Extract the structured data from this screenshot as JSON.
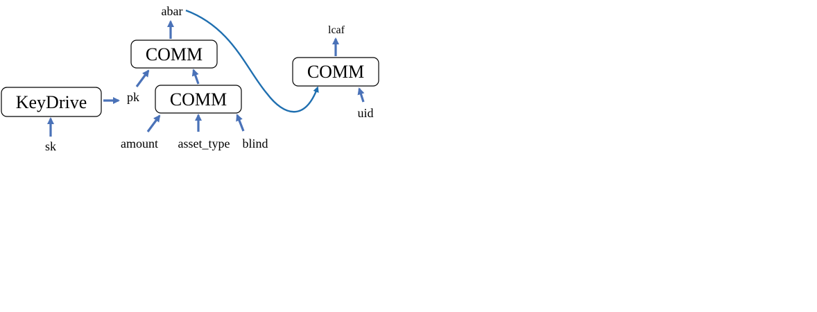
{
  "nodes": {
    "keydrive": "KeyDrive",
    "comm_top": "COMM",
    "comm_mid": "COMM",
    "comm_right": "COMM"
  },
  "labels": {
    "sk": "sk",
    "pk": "pk",
    "abar": "abar",
    "amount": "amount",
    "asset_type": "asset_type",
    "blind": "blind",
    "leaf": "lcaf",
    "uid": "uid"
  },
  "colors": {
    "arrow": "#4a72b8",
    "curve": "#1f6fb0",
    "box_stroke": "#000000"
  }
}
